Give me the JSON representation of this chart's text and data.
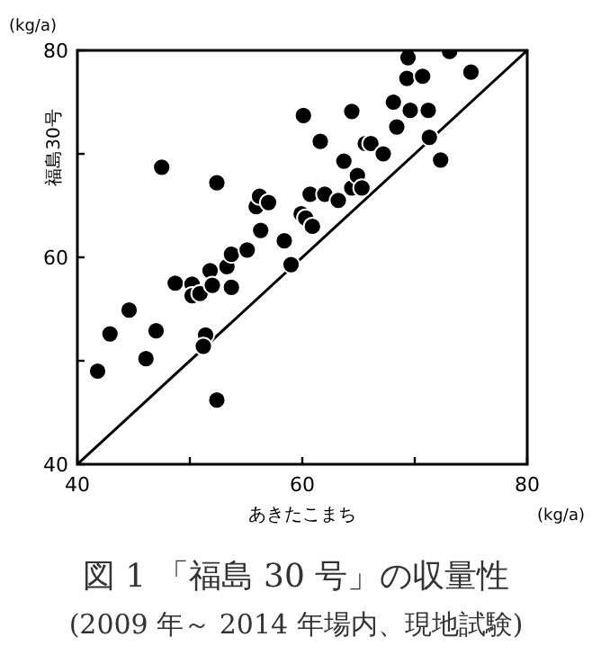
{
  "chart_data": {
    "type": "scatter",
    "title": "図 1 「福島 30 号」の収量性",
    "subtitle": "(2009 年～ 2014 年場内、現地試験)",
    "xlabel": "あきたこまち",
    "ylabel": "福島30号",
    "annotations": [
      "(kg/a)",
      "(kg/a)"
    ],
    "xlim": [
      40,
      80
    ],
    "ylim": [
      40,
      80
    ],
    "xticks": [
      40,
      {
        "value": 50,
        "label": null
      },
      60,
      {
        "value": 70,
        "label": null
      },
      80
    ],
    "yticks": [
      40,
      {
        "value": 50,
        "label": null
      },
      60,
      {
        "value": 70,
        "label": null
      },
      80
    ],
    "grid": false,
    "series": [
      {
        "type": "scatter",
        "color": "#000000",
        "marker": "circle",
        "x": [
          41.8,
          42.9,
          44.6,
          46.1,
          47.0,
          47.5,
          48.7,
          50.2,
          50.2,
          50.9,
          51.8,
          52.0,
          51.4,
          51.2,
          52.4,
          52.4,
          53.3,
          53.7,
          53.7,
          55.1,
          55.9,
          56.2,
          57.0,
          56.3,
          58.4,
          59.0,
          60.1,
          59.9,
          60.3,
          60.9,
          60.7,
          61.6,
          62.0,
          63.2,
          63.7,
          64.4,
          64.4,
          64.9,
          65.3,
          65.6,
          66.1,
          67.2,
          68.1,
          68.4,
          69.3,
          69.4,
          69.6,
          70.7,
          71.2,
          71.3,
          72.3,
          73.1,
          75.0
        ],
        "values": [
          49.0,
          52.6,
          54.9,
          50.2,
          52.9,
          68.7,
          57.5,
          57.4,
          56.3,
          56.5,
          58.7,
          57.3,
          52.5,
          51.4,
          46.2,
          67.2,
          59.1,
          57.1,
          60.3,
          60.7,
          64.9,
          65.9,
          65.3,
          62.6,
          61.6,
          59.3,
          73.7,
          64.2,
          63.8,
          63.0,
          66.1,
          71.2,
          66.1,
          65.5,
          69.3,
          74.1,
          66.7,
          67.9,
          66.7,
          71.0,
          71.0,
          70.0,
          75.0,
          72.6,
          77.3,
          79.3,
          74.2,
          77.5,
          74.2,
          71.6,
          69.4,
          79.9,
          77.9
        ]
      },
      {
        "type": "line",
        "color": "#000000",
        "line_style": "solid",
        "x": [
          40,
          80
        ],
        "values": [
          40,
          80
        ]
      }
    ]
  }
}
